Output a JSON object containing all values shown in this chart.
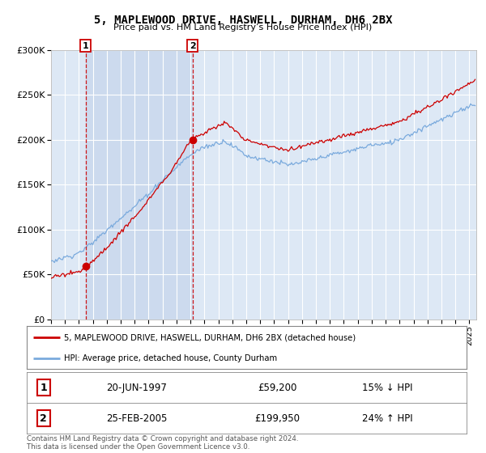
{
  "title": "5, MAPLEWOOD DRIVE, HASWELL, DURHAM, DH6 2BX",
  "subtitle": "Price paid vs. HM Land Registry’s House Price Index (HPI)",
  "legend_line1": "5, MAPLEWOOD DRIVE, HASWELL, DURHAM, DH6 2BX (detached house)",
  "legend_line2": "HPI: Average price, detached house, County Durham",
  "sale1_date": "20-JUN-1997",
  "sale1_price": "£59,200",
  "sale1_hpi": "15% ↓ HPI",
  "sale2_date": "25-FEB-2005",
  "sale2_price": "£199,950",
  "sale2_hpi": "24% ↑ HPI",
  "footer": "Contains HM Land Registry data © Crown copyright and database right 2024.\nThis data is licensed under the Open Government Licence v3.0.",
  "sale1_year": 1997.47,
  "sale1_value": 59200,
  "sale2_year": 2005.15,
  "sale2_value": 199950,
  "red_color": "#cc0000",
  "blue_color": "#7aaadd",
  "bg_plot": "#dde8f5",
  "bg_shade": "#ccdaee",
  "ylim": [
    0,
    300000
  ],
  "xlim_start": 1995.0,
  "xlim_end": 2025.5
}
